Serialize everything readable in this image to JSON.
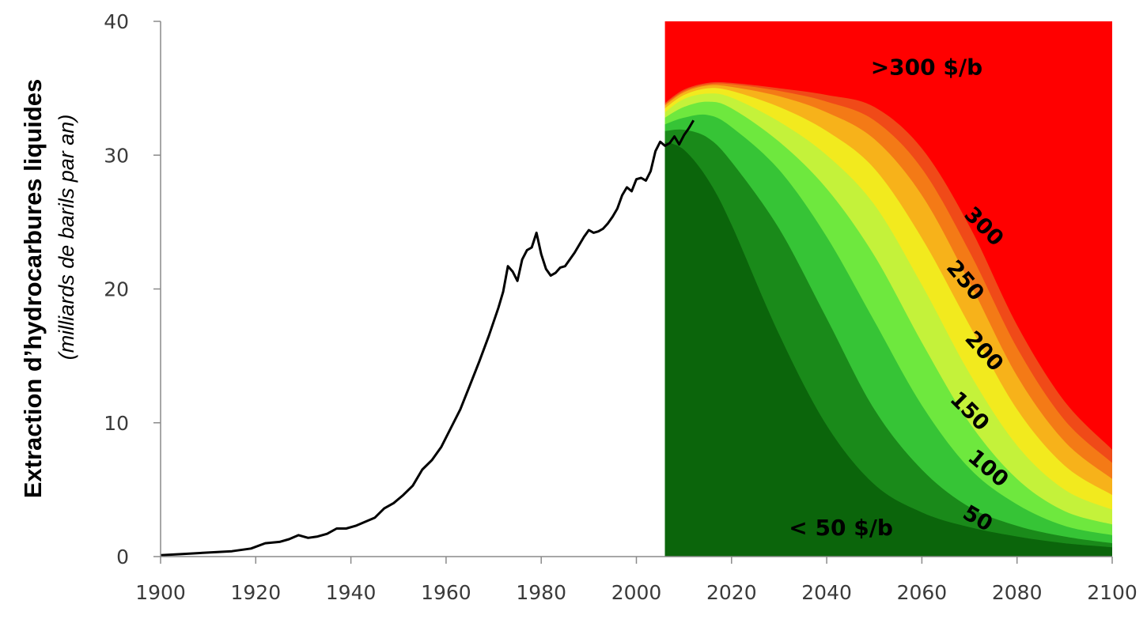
{
  "chart_data": {
    "type": "area",
    "title": "",
    "ylabel": "Extraction d’hydrocarbures liquides",
    "ylabel_sub": "(milliards de barils par an)",
    "xlim": [
      1900,
      2100
    ],
    "ylim": [
      0,
      40
    ],
    "x_ticks": [
      1900,
      1920,
      1940,
      1960,
      1980,
      2000,
      2020,
      2040,
      2060,
      2080,
      2100
    ],
    "y_ticks": [
      0,
      10,
      20,
      30,
      40
    ],
    "grid": false,
    "projection_start": 2006,
    "historical": {
      "name": "",
      "color": "#000000",
      "x": [
        1900,
        1905,
        1910,
        1915,
        1919,
        1922,
        1925,
        1927,
        1929,
        1931,
        1933,
        1935,
        1937,
        1939,
        1941,
        1943,
        1945,
        1947,
        1949,
        1951,
        1953,
        1955,
        1957,
        1959,
        1961,
        1963,
        1965,
        1967,
        1969,
        1971,
        1972,
        1973,
        1974,
        1975,
        1976,
        1977,
        1978,
        1979,
        1980,
        1981,
        1982,
        1983,
        1984,
        1985,
        1986,
        1987,
        1988,
        1989,
        1990,
        1991,
        1992,
        1993,
        1994,
        1995,
        1996,
        1997,
        1998,
        1999,
        2000,
        2001,
        2002,
        2003,
        2004,
        2005,
        2006,
        2007,
        2008,
        2009,
        2010,
        2011,
        2012
      ],
      "y": [
        0.1,
        0.2,
        0.3,
        0.4,
        0.6,
        1.0,
        1.1,
        1.3,
        1.6,
        1.4,
        1.5,
        1.7,
        2.1,
        2.1,
        2.3,
        2.6,
        2.9,
        3.6,
        4.0,
        4.6,
        5.3,
        6.5,
        7.2,
        8.2,
        9.6,
        11.0,
        12.8,
        14.6,
        16.5,
        18.6,
        19.8,
        21.7,
        21.3,
        20.6,
        22.2,
        22.9,
        23.1,
        24.2,
        22.6,
        21.5,
        21.0,
        21.2,
        21.6,
        21.7,
        22.2,
        22.7,
        23.3,
        23.9,
        24.4,
        24.2,
        24.3,
        24.5,
        24.9,
        25.4,
        26.0,
        27.0,
        27.6,
        27.3,
        28.2,
        28.3,
        28.1,
        28.8,
        30.3,
        31.0,
        30.7,
        30.9,
        31.4,
        30.8,
        31.5,
        32.0,
        32.6
      ]
    },
    "bands": {
      "x": [
        2006,
        2010,
        2015,
        2020,
        2030,
        2040,
        2050,
        2060,
        2070,
        2080,
        2090,
        2100
      ],
      "series": [
        {
          "name": "< 50 $/b",
          "color": "#0b650b",
          "values": [
            31.0,
            30.4,
            28.2,
            24.8,
            16.6,
            9.8,
            5.4,
            3.3,
            2.2,
            1.5,
            1.0,
            0.7
          ]
        },
        {
          "name": "50",
          "color": "#1a8a1a",
          "values": [
            31.8,
            31.9,
            31.3,
            29.5,
            24.5,
            17.8,
            11.0,
            6.5,
            3.7,
            2.3,
            1.5,
            1.0
          ]
        },
        {
          "name": "100",
          "color": "#36c436",
          "values": [
            32.3,
            32.8,
            33.0,
            32.1,
            28.9,
            23.9,
            17.6,
            11.3,
            6.6,
            3.9,
            2.3,
            1.6
          ]
        },
        {
          "name": "150",
          "color": "#6ee83e",
          "values": [
            32.8,
            33.6,
            34.0,
            33.5,
            31.0,
            27.5,
            22.5,
            16.0,
            10.0,
            5.8,
            3.4,
            2.4
          ]
        },
        {
          "name": "200",
          "color": "#c4f23a",
          "values": [
            33.2,
            34.2,
            34.6,
            34.3,
            32.5,
            30.0,
            26.3,
            20.3,
            13.7,
            8.3,
            5.0,
            3.5
          ]
        },
        {
          "name": "250",
          "color": "#f2ea1e",
          "values": [
            33.5,
            34.5,
            35.0,
            34.8,
            33.6,
            31.8,
            29.0,
            23.8,
            17.3,
            11.0,
            6.8,
            4.6
          ]
        },
        {
          "name": "300",
          "color": "#f7b21a",
          "values": [
            33.7,
            34.7,
            35.2,
            35.1,
            34.4,
            33.2,
            31.2,
            27.0,
            20.5,
            13.5,
            8.6,
            5.8
          ]
        },
        {
          "name": "",
          "color": "#f47a16",
          "values": [
            33.8,
            34.8,
            35.3,
            35.3,
            34.8,
            34.0,
            32.6,
            29.0,
            22.8,
            15.6,
            10.2,
            7.0
          ]
        },
        {
          "name": "",
          "color": "#f04a18",
          "values": [
            33.9,
            34.9,
            35.4,
            35.4,
            35.0,
            34.5,
            33.6,
            30.5,
            24.7,
            17.3,
            11.6,
            8.0
          ]
        },
        {
          "name": ">300 $/b",
          "color": "#ff0000",
          "values": [
            40,
            40,
            40,
            40,
            40,
            40,
            40,
            40,
            40,
            40,
            40,
            40
          ]
        }
      ]
    },
    "annotations": [
      {
        "text": ">300 $/b",
        "x": 2061,
        "y": 36
      },
      {
        "text": "< 50 $/b",
        "x": 2043,
        "y": 1.6
      }
    ],
    "band_labels": [
      {
        "text": "300",
        "x": 2072,
        "y": 24.3,
        "angle": 45
      },
      {
        "text": "250",
        "x": 2068,
        "y": 20.3,
        "angle": 50
      },
      {
        "text": "200",
        "x": 2072,
        "y": 15.0,
        "angle": 48
      },
      {
        "text": "150",
        "x": 2069,
        "y": 10.5,
        "angle": 45
      },
      {
        "text": "100",
        "x": 2073,
        "y": 6.2,
        "angle": 40
      },
      {
        "text": "50",
        "x": 2071,
        "y": 2.4,
        "angle": 30
      }
    ]
  }
}
